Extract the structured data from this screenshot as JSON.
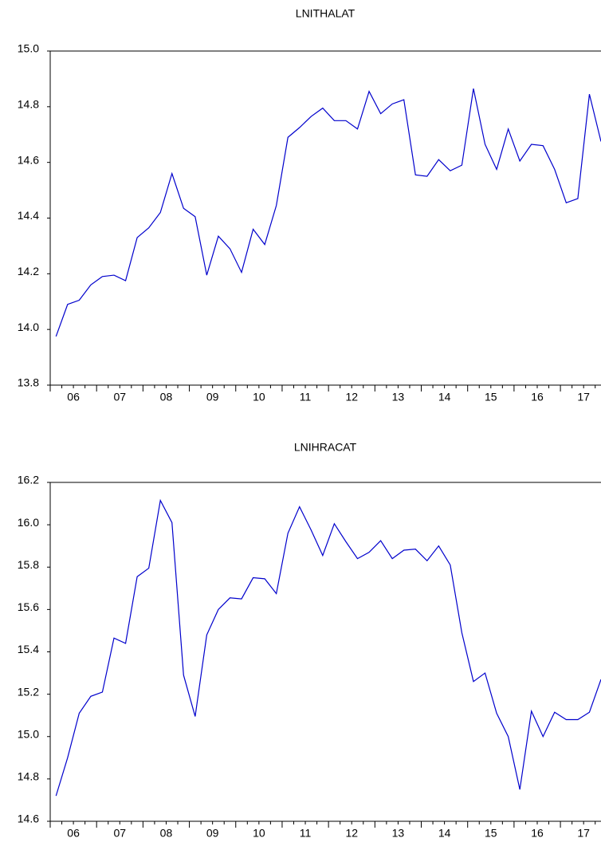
{
  "chart_data": [
    {
      "type": "line",
      "title": "LNITHALAT",
      "color": "#0000cc",
      "categories": [
        null,
        "06",
        null,
        null,
        null,
        "07",
        null,
        null,
        null,
        "08",
        null,
        null,
        null,
        "09",
        null,
        null,
        null,
        "10",
        null,
        null,
        null,
        "11",
        null,
        null,
        null,
        "12",
        null,
        null,
        null,
        "13",
        null,
        null,
        null,
        "14",
        null,
        null,
        null,
        "15",
        null,
        null,
        null,
        "16",
        null,
        null,
        null,
        "17",
        null,
        null
      ],
      "values": [
        13.975,
        14.09,
        14.105,
        14.16,
        14.19,
        14.195,
        14.175,
        14.33,
        14.365,
        14.42,
        14.56,
        14.435,
        14.405,
        14.195,
        14.335,
        14.29,
        14.205,
        14.36,
        14.305,
        14.445,
        14.69,
        14.725,
        14.765,
        14.795,
        14.75,
        14.75,
        14.72,
        14.855,
        14.775,
        14.81,
        14.825,
        14.555,
        14.55,
        14.61,
        14.57,
        14.59,
        14.865,
        14.665,
        14.575,
        14.72,
        14.605,
        14.665,
        14.66,
        14.575,
        14.455,
        14.47,
        14.845,
        14.675
      ],
      "ylim": [
        13.8,
        15.0
      ],
      "yticks": [
        {
          "value": 13.8,
          "label": "13.8"
        },
        {
          "value": 14.0,
          "label": "14.0"
        },
        14.2,
        14.4,
        14.6,
        14.8,
        {
          "value": 15.0,
          "label": "15.0"
        }
      ]
    },
    {
      "type": "line",
      "title": "LNIHRACAT",
      "color": "#0000cc",
      "categories": [
        null,
        "06",
        null,
        null,
        null,
        "07",
        null,
        null,
        null,
        "08",
        null,
        null,
        null,
        "09",
        null,
        null,
        null,
        "10",
        null,
        null,
        null,
        "11",
        null,
        null,
        null,
        "12",
        null,
        null,
        null,
        "13",
        null,
        null,
        null,
        "14",
        null,
        null,
        null,
        "15",
        null,
        null,
        null,
        "16",
        null,
        null,
        null,
        "17",
        null,
        null
      ],
      "values": [
        14.72,
        14.9,
        15.11,
        15.19,
        15.21,
        15.465,
        15.44,
        15.755,
        15.795,
        16.115,
        16.01,
        15.29,
        15.095,
        15.48,
        15.6,
        15.655,
        15.65,
        15.75,
        15.745,
        15.675,
        15.96,
        16.085,
        15.975,
        15.855,
        16.005,
        15.92,
        15.84,
        15.87,
        15.925,
        15.84,
        15.88,
        15.885,
        15.83,
        15.9,
        15.81,
        15.49,
        15.26,
        15.3,
        15.11,
        15.0,
        14.75,
        15.12,
        15.0,
        15.115,
        15.08,
        15.08,
        15.115,
        15.27
      ],
      "ylim": [
        14.6,
        16.2
      ],
      "yticks": [
        14.6,
        14.8,
        {
          "value": 15.0,
          "label": "15.0"
        },
        15.2,
        15.4,
        15.6,
        15.8,
        {
          "value": 16.0,
          "label": "16.0"
        },
        16.2
      ]
    }
  ]
}
